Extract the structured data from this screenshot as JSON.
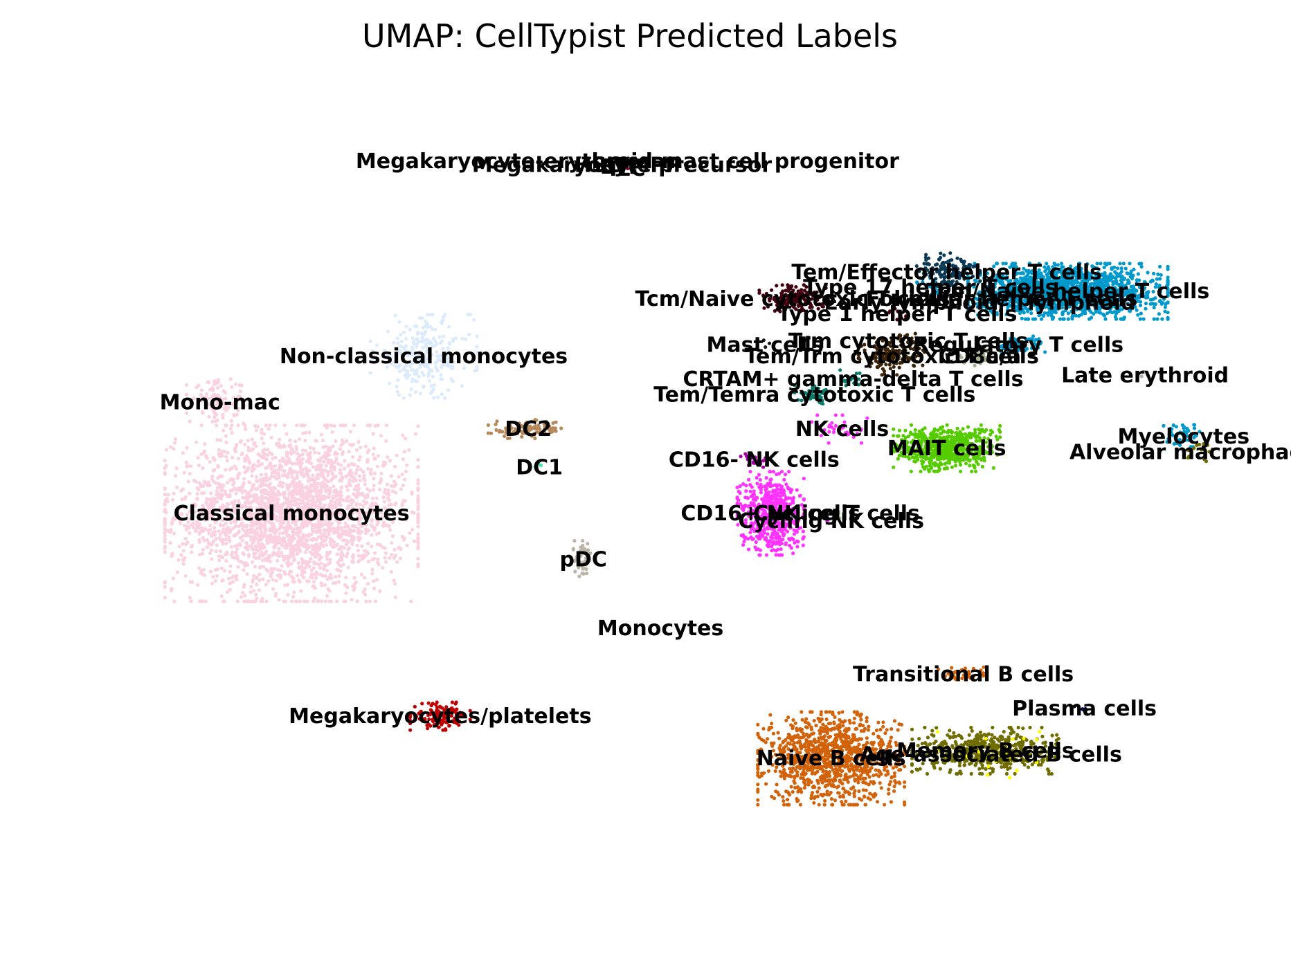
{
  "chart_data": {
    "type": "scatter",
    "title": "UMAP: CellTypist Predicted Labels",
    "xlabel": "",
    "ylabel": "",
    "grid": false,
    "axes_visible": false,
    "legend": "on data",
    "xlim": [
      -6.5,
      15.5
    ],
    "ylim": [
      -5.0,
      17.5
    ],
    "clusters": [
      {
        "label": "Classical monocytes",
        "color": "#f9d1e0",
        "center": [
          -2.4,
          5.9
        ],
        "spread": [
          1.9,
          1.9
        ],
        "n": 2600
      },
      {
        "label": "Non-classical monocytes",
        "color": "#dcebfb",
        "center": [
          0.0,
          10.0
        ],
        "spread": [
          0.8,
          0.9
        ],
        "n": 260
      },
      {
        "label": "Mono-mac",
        "color": "#f9d1e0",
        "center": [
          -3.7,
          8.8
        ],
        "spread": [
          0.5,
          0.5
        ],
        "n": 110
      },
      {
        "label": "DC2",
        "color": "#b5895a",
        "center": [
          1.9,
          8.1
        ],
        "spread": [
          0.6,
          0.2
        ],
        "n": 90
      },
      {
        "label": "DC1",
        "color": "#40e8a8",
        "center": [
          2.1,
          7.1
        ],
        "spread": [
          0.1,
          0.1
        ],
        "n": 4
      },
      {
        "label": "pDC",
        "color": "#bcb4a8",
        "center": [
          2.9,
          4.7
        ],
        "spread": [
          0.15,
          0.4
        ],
        "n": 45
      },
      {
        "label": "Megakaryocytes/platelets",
        "color": "#c00000",
        "center": [
          0.3,
          0.6
        ],
        "spread": [
          0.45,
          0.3
        ],
        "n": 130
      },
      {
        "label": "Naive B cells",
        "color": "#d2630a",
        "center": [
          7.4,
          -0.5
        ],
        "spread": [
          1.1,
          1.0
        ],
        "n": 1100
      },
      {
        "label": "Memory B cells",
        "color": "#6f6d00",
        "center": [
          10.2,
          -0.3
        ],
        "spread": [
          1.1,
          0.5
        ],
        "n": 520
      },
      {
        "label": "Age-associated B cells",
        "color": "#ffff00",
        "center": [
          10.3,
          -0.4
        ],
        "spread": [
          0.8,
          0.5
        ],
        "n": 25
      },
      {
        "label": "Transitional B cells",
        "color": "#d2630a",
        "center": [
          9.8,
          1.7
        ],
        "spread": [
          0.4,
          0.2
        ],
        "n": 40
      },
      {
        "label": "Plasma cells",
        "color": "#000040",
        "center": [
          12.0,
          0.8
        ],
        "spread": [
          0.15,
          0.1
        ],
        "n": 5
      },
      {
        "label": "CD16+ NK cells",
        "color": "#ff33ff",
        "center": [
          6.3,
          5.9
        ],
        "spread": [
          0.5,
          0.9
        ],
        "n": 560
      },
      {
        "label": "CD16- NK cells",
        "color": "#aa00aa",
        "center": [
          6.0,
          7.3
        ],
        "spread": [
          0.2,
          0.2
        ],
        "n": 20
      },
      {
        "label": "Cycling T cells",
        "color": "#a0c090",
        "center": [
          7.5,
          5.9
        ],
        "spread": [
          0.1,
          0.1
        ],
        "n": 4
      },
      {
        "label": "Cycling NK cells",
        "color": "#ff33ff",
        "center": [
          7.4,
          5.7
        ],
        "spread": [
          0.1,
          0.1
        ],
        "n": 4
      },
      {
        "label": "MAIT cells",
        "color": "#55cc00",
        "center": [
          9.5,
          7.6
        ],
        "spread": [
          0.8,
          0.5
        ],
        "n": 620
      },
      {
        "label": "NK cells",
        "color": "#ff33ff",
        "center": [
          7.6,
          8.1
        ],
        "spread": [
          0.5,
          0.3
        ],
        "n": 30
      },
      {
        "label": "Tcm/Naive helper T cells",
        "color": "#0099cc",
        "center": [
          11.7,
          11.7
        ],
        "spread": [
          1.5,
          0.6
        ],
        "n": 1600
      },
      {
        "label": "Tem/Effector helper T cells",
        "color": "#0a3a55",
        "center": [
          9.5,
          12.2
        ],
        "spread": [
          0.5,
          0.5
        ],
        "n": 140
      },
      {
        "label": "Regulatory T cells",
        "color": "#0099cc",
        "center": [
          10.8,
          10.3
        ],
        "spread": [
          0.4,
          0.2
        ],
        "n": 60
      },
      {
        "label": "Tcm/Naive cytotoxic T cells",
        "color": "#400010",
        "center": [
          6.7,
          11.5
        ],
        "spread": [
          0.5,
          0.3
        ],
        "n": 170
      },
      {
        "label": "Tem/Trm cytotoxic T cells",
        "color": "#3a2208",
        "center": [
          8.5,
          10.0
        ],
        "spread": [
          0.5,
          0.4
        ],
        "n": 150
      },
      {
        "label": "Tem/Temra cytotoxic T cells",
        "color": "#0a7a6a",
        "center": [
          7.1,
          9.0
        ],
        "spread": [
          0.3,
          0.2
        ],
        "n": 60
      },
      {
        "label": "Trm cytotoxic T cells",
        "color": "#3a2208",
        "center": [
          8.8,
          10.4
        ],
        "spread": [
          0.2,
          0.2
        ],
        "n": 20
      },
      {
        "label": "CRTAM+ gamma-delta T cells",
        "color": "#0a7a6a",
        "center": [
          7.8,
          9.4
        ],
        "spread": [
          0.2,
          0.2
        ],
        "n": 15
      },
      {
        "label": "CD8a/a",
        "color": "#9fb08f",
        "center": [
          10.1,
          10.0
        ],
        "spread": [
          0.3,
          0.2
        ],
        "n": 40
      },
      {
        "label": "Follicular helper T cells",
        "color": "#0099cc",
        "center": [
          10.5,
          11.5
        ],
        "spread": [
          0.3,
          0.2
        ],
        "n": 20
      },
      {
        "label": "Type 1 helper T cells",
        "color": "#400010",
        "center": [
          8.6,
          11.1
        ],
        "spread": [
          0.2,
          0.2
        ],
        "n": 15
      },
      {
        "label": "Type 17 helper T cells",
        "color": "#0099cc",
        "center": [
          9.2,
          11.8
        ],
        "spread": [
          0.2,
          0.2
        ],
        "n": 10
      },
      {
        "label": "Mast cells",
        "color": "#1a1a1a",
        "center": [
          6.2,
          10.3
        ],
        "spread": [
          0.1,
          0.1
        ],
        "n": 3
      },
      {
        "label": "Early lymphoid/T lymphoid",
        "color": "#005577",
        "center": [
          10.1,
          11.4
        ],
        "spread": [
          0.2,
          0.2
        ],
        "n": 10
      },
      {
        "label": "Late erythroid",
        "color": "#b0b0b0",
        "center": [
          13.1,
          9.5
        ],
        "spread": [
          0.1,
          0.1
        ],
        "n": 3
      },
      {
        "label": "Myelocytes",
        "color": "#0099cc",
        "center": [
          13.8,
          7.9
        ],
        "spread": [
          0.3,
          0.3
        ],
        "n": 50
      },
      {
        "label": "Alveolar macrophages",
        "color": "#6f6d00",
        "center": [
          14.1,
          7.5
        ],
        "spread": [
          0.2,
          0.2
        ],
        "n": 15
      },
      {
        "label": "Monocytes",
        "color": "#d0d0d0",
        "center": [
          4.3,
          2.9
        ],
        "spread": [
          0.1,
          0.1
        ],
        "n": 0
      },
      {
        "label": "Megakaryocyte-erythroid-mast cell progenitor",
        "color": "#7a0020",
        "center": [
          3.7,
          15.1
        ],
        "spread": [
          0.05,
          0.05
        ],
        "n": 2
      },
      {
        "label": "Megakaryocyte precursor",
        "color": "#7a0020",
        "center": [
          3.6,
          15.0
        ],
        "spread": [
          0.05,
          0.05
        ],
        "n": 1
      },
      {
        "label": "HSC/MPP",
        "color": "#7a0020",
        "center": [
          3.7,
          15.0
        ],
        "spread": [
          0.05,
          0.05
        ],
        "n": 1
      },
      {
        "label": "ETP",
        "color": "#7a0020",
        "center": [
          3.6,
          14.95
        ],
        "spread": [
          0.05,
          0.05
        ],
        "n": 1
      },
      {
        "label": "ILC",
        "color": "#7a0020",
        "center": [
          3.7,
          14.9
        ],
        "spread": [
          0.05,
          0.05
        ],
        "n": 1
      }
    ]
  }
}
